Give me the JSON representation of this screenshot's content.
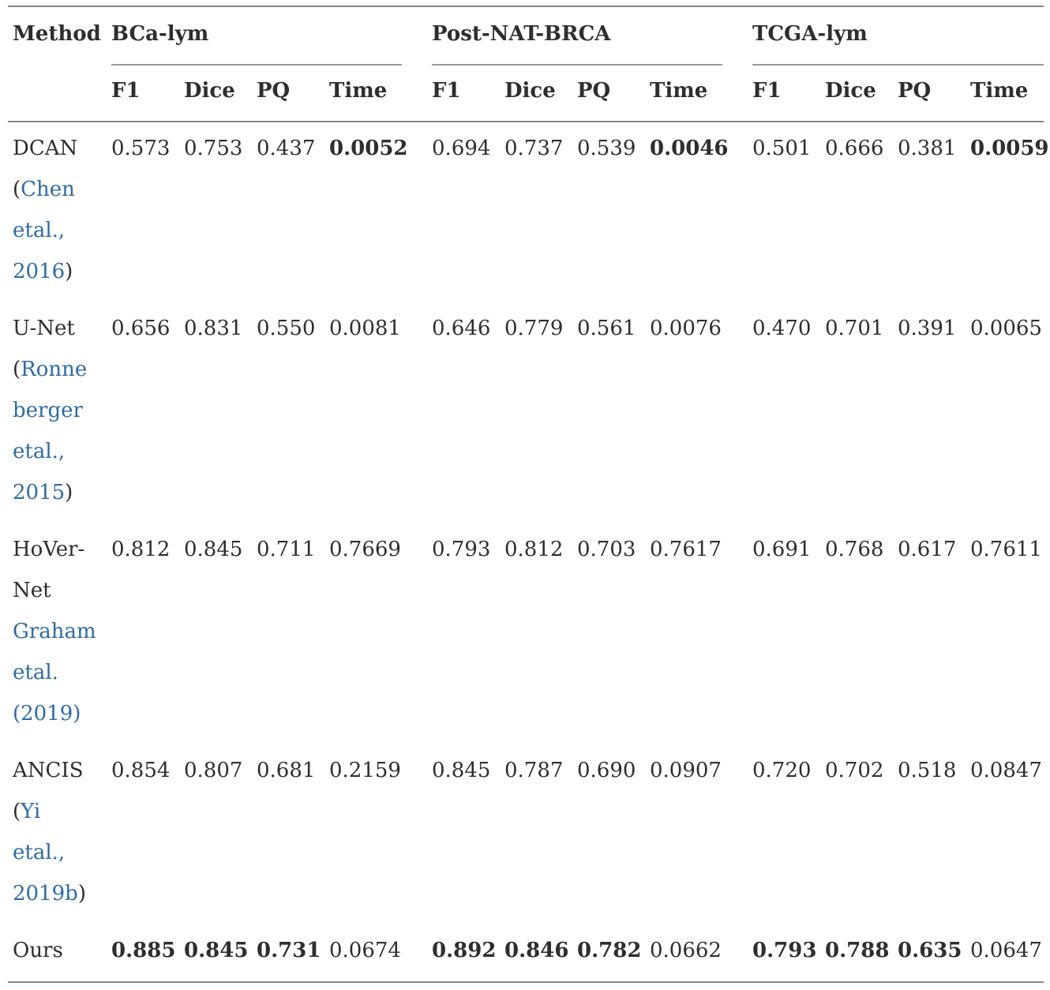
{
  "header": {
    "method": "Method",
    "groups": [
      "BCa-lym",
      "Post-NAT-BRCA",
      "TCGA-lym"
    ],
    "metrics": [
      "F1",
      "Dice",
      "PQ",
      "Time"
    ]
  },
  "rows": [
    {
      "method_lines": [
        {
          "text": "DCAN",
          "cite": false
        },
        {
          "text": "(",
          "cite": false,
          "suffix": "Chen"
        },
        {
          "text": "etal.,",
          "cite": true
        },
        {
          "text": "2016",
          "cite": true,
          "close": ")"
        }
      ],
      "values": [
        [
          "0.573",
          "0.753",
          "0.437",
          "0.0052"
        ],
        [
          "0.694",
          "0.737",
          "0.539",
          "0.0046"
        ],
        [
          "0.501",
          "0.666",
          "0.381",
          "0.0059"
        ]
      ]
    },
    {
      "method_lines": [
        {
          "text": "U-Net",
          "cite": false
        },
        {
          "text": "(",
          "cite": false,
          "suffix": "Ronne"
        },
        {
          "text": "berger",
          "cite": true
        },
        {
          "text": "etal.,",
          "cite": true
        },
        {
          "text": "2015",
          "cite": true,
          "close": ")"
        }
      ],
      "values": [
        [
          "0.656",
          "0.831",
          "0.550",
          "0.0081"
        ],
        [
          "0.646",
          "0.779",
          "0.561",
          "0.0076"
        ],
        [
          "0.470",
          "0.701",
          "0.391",
          "0.0065"
        ]
      ]
    },
    {
      "method_lines": [
        {
          "text": "HoVer-",
          "cite": false
        },
        {
          "text": "Net",
          "cite": false
        },
        {
          "text": "Graham",
          "cite": true
        },
        {
          "text": "etal.",
          "cite": true
        },
        {
          "text": "(2019)",
          "cite": true
        }
      ],
      "values": [
        [
          "0.812",
          "0.845",
          "0.711",
          "0.7669"
        ],
        [
          "0.793",
          "0.812",
          "0.703",
          "0.7617"
        ],
        [
          "0.691",
          "0.768",
          "0.617",
          "0.7611"
        ]
      ]
    },
    {
      "method_lines": [
        {
          "text": "ANCIS",
          "cite": false
        },
        {
          "text": "(",
          "cite": false,
          "suffix": "Yi"
        },
        {
          "text": "etal.,",
          "cite": true
        },
        {
          "text": "2019b",
          "cite": true,
          "close": ")"
        }
      ],
      "values": [
        [
          "0.854",
          "0.807",
          "0.681",
          "0.2159"
        ],
        [
          "0.845",
          "0.787",
          "0.690",
          "0.0907"
        ],
        [
          "0.720",
          "0.702",
          "0.518",
          "0.0847"
        ]
      ]
    },
    {
      "method_lines": [
        {
          "text": "Ours",
          "cite": false
        }
      ],
      "values": [
        [
          "0.885",
          "0.845",
          "0.731",
          "0.0674"
        ],
        [
          "0.892",
          "0.846",
          "0.782",
          "0.0662"
        ],
        [
          "0.793",
          "0.788",
          "0.635",
          "0.0647"
        ]
      ]
    }
  ],
  "bold_cells": [
    [
      0,
      0,
      3
    ],
    [
      0,
      1,
      3
    ],
    [
      0,
      2,
      3
    ],
    [
      4,
      0,
      0
    ],
    [
      4,
      0,
      1
    ],
    [
      4,
      0,
      2
    ],
    [
      4,
      1,
      0
    ],
    [
      4,
      1,
      1
    ],
    [
      4,
      1,
      2
    ],
    [
      4,
      2,
      0
    ],
    [
      4,
      2,
      1
    ],
    [
      4,
      2,
      2
    ]
  ]
}
